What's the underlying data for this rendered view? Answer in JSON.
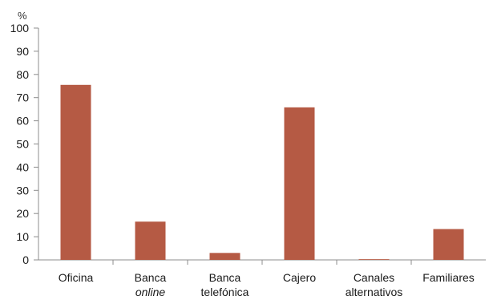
{
  "chart_data": {
    "type": "bar",
    "unit_label": "%",
    "categories": [
      {
        "lines": [
          "Oficina"
        ],
        "italic_line": null
      },
      {
        "lines": [
          "Banca",
          "online"
        ],
        "italic_line": 1
      },
      {
        "lines": [
          "Banca",
          "telefónica"
        ],
        "italic_line": null
      },
      {
        "lines": [
          "Cajero"
        ],
        "italic_line": null
      },
      {
        "lines": [
          "Canales",
          "alternativos"
        ],
        "italic_line": null
      },
      {
        "lines": [
          "Familiares"
        ],
        "italic_line": null
      }
    ],
    "values": [
      75.5,
      16.5,
      3,
      65.8,
      0.3,
      13.3
    ],
    "ylim": [
      0,
      100
    ],
    "yticks": [
      0,
      10,
      20,
      30,
      40,
      50,
      60,
      70,
      80,
      90,
      100
    ],
    "bar_color": "#b55a44",
    "axis_color": "#8c8c8c",
    "grid": false,
    "legend": "none"
  }
}
